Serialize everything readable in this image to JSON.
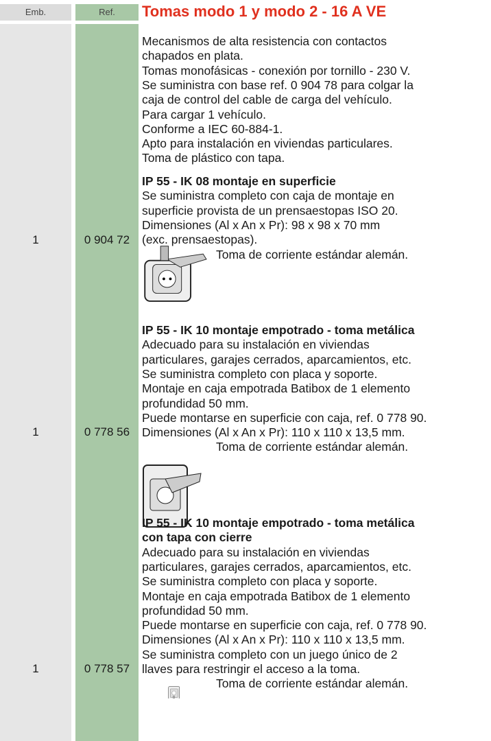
{
  "header": {
    "emb": "Emb.",
    "ref": "Ref.",
    "title": "Tomas modo 1 y modo 2 - 16 A VE"
  },
  "intro": [
    "Mecanismos de alta resistencia con contactos",
    "chapados en plata.",
    "Tomas monofásicas - conexión por tornillo - 230 V.",
    "Se suministra con base ref. 0 904 78 para colgar la",
    "caja de control del cable de carga del vehículo.",
    "Para cargar 1 vehículo.",
    "Conforme a IEC 60-884-1.",
    "Apto para instalación en viviendas particulares.",
    "Toma de plástico con tapa."
  ],
  "products": [
    {
      "emb": "1",
      "ref": "0 904 72",
      "heading": [
        "IP 55 - IK 08 montaje en superficie"
      ],
      "lines": [
        "Se suministra completo con caja de montaje en",
        "superficie provista de un prensaestopas ISO 20.",
        "Dimensiones (Al x An x Pr): 98 x 98 x 70 mm",
        "(exc. prensaestopas)."
      ],
      "caption": "Toma de corriente estándar alemán."
    },
    {
      "emb": "1",
      "ref": "0 778 56",
      "heading": [
        "IP 55 - IK 10 montaje empotrado - toma metálica"
      ],
      "lines": [
        "Adecuado para su instalación en viviendas",
        "particulares, garajes cerrados, aparcamientos, etc.",
        "Se suministra completo con placa y soporte.",
        "Montaje en caja empotrada Batibox de 1 elemento",
        "profundidad 50 mm.",
        "Puede montarse en superficie con caja, ref. 0 778 90.",
        "Dimensiones (Al x An x Pr): 110 x 110 x 13,5 mm."
      ],
      "caption": "Toma de corriente estándar alemán."
    },
    {
      "emb": "1",
      "ref": "0 778 57",
      "heading": [
        "IP 55 - IK 10 montaje empotrado - toma metálica",
        "con tapa con cierre"
      ],
      "lines": [
        "Adecuado para su instalación en viviendas",
        "particulares, garajes cerrados, aparcamientos, etc.",
        "Se suministra completo con placa y soporte.",
        "Montaje en caja empotrada Batibox de 1 elemento",
        "profundidad 50 mm.",
        "Puede montarse en superficie con caja, ref. 0 778 90.",
        "Dimensiones (Al x An x Pr): 110 x 110 x 13,5 mm.",
        "Se suministra completo con un juego único de 2",
        "llaves para restringir el acceso a la toma."
      ],
      "caption": "Toma de corriente estándar alemán."
    }
  ]
}
